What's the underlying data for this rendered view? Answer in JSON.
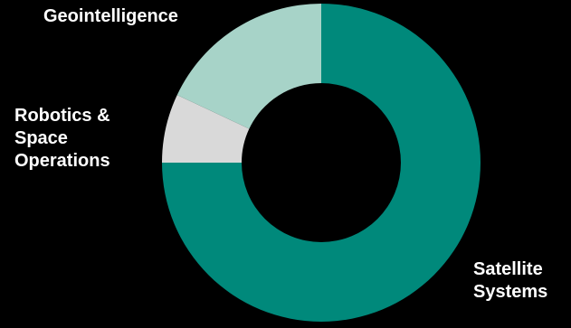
{
  "chart_data": {
    "type": "pie",
    "variant": "donut",
    "start_angle_deg": 0,
    "direction": "clockwise",
    "hole_ratio": 0.5,
    "background": "#000000",
    "label_color": "#FFFFFF",
    "categories": [
      "Satellite\nSystems",
      "Robotics &\nSpace\nOperations",
      "Geointelligence"
    ],
    "values": [
      75,
      7,
      18
    ],
    "unit": "%",
    "colors": [
      "#00897B",
      "#D9D9D9",
      "#A7D3C8"
    ],
    "legend": "none"
  }
}
